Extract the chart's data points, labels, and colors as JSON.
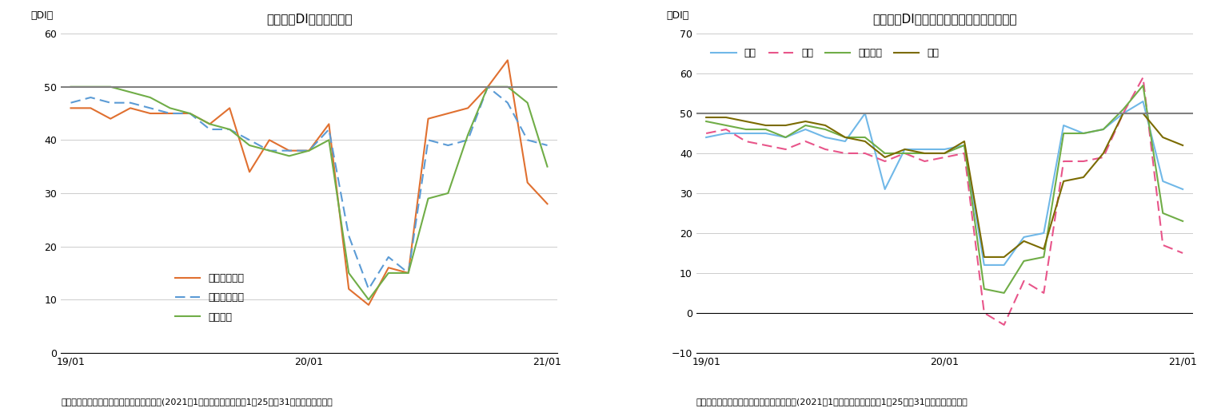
{
  "chart1": {
    "title": "現状判断DIの内訳の推移",
    "ylabel": "（DI）",
    "ylim": [
      0,
      60
    ],
    "yticks": [
      0,
      10,
      20,
      30,
      40,
      50,
      60
    ],
    "hline": 50,
    "footnote": "（出所）内閣府「景気ウォッチャー調査」(2021年1月調査、調査期間：1月25日～31日、季節調整値）",
    "x_labels": [
      "19/01",
      "20/01",
      "21/01"
    ],
    "series": [
      {
        "name": "家計動向関連",
        "color": "#E07030",
        "dashes": [],
        "values": [
          46,
          46,
          44,
          46,
          45,
          45,
          45,
          43,
          46,
          34,
          40,
          38,
          38,
          43,
          12,
          9,
          16,
          15,
          44,
          45,
          46,
          50,
          55,
          32,
          28
        ]
      },
      {
        "name": "企業動向関連",
        "color": "#5B9BD5",
        "dashes": [
          6,
          3
        ],
        "values": [
          47,
          48,
          47,
          47,
          46,
          45,
          45,
          42,
          42,
          40,
          38,
          38,
          38,
          42,
          22,
          12,
          18,
          15,
          40,
          39,
          40,
          50,
          47,
          40,
          39
        ]
      },
      {
        "name": "雇用関連",
        "color": "#70AD47",
        "dashes": [],
        "values": [
          50,
          50,
          50,
          49,
          48,
          46,
          45,
          43,
          42,
          39,
          38,
          37,
          38,
          40,
          15,
          10,
          15,
          15,
          29,
          30,
          41,
          50,
          50,
          47,
          35
        ]
      }
    ]
  },
  "chart2": {
    "title": "現状判断DI（家計動向関連）の内訳の推移",
    "ylabel": "（DI）",
    "ylim": [
      -10,
      70
    ],
    "yticks": [
      -10,
      0,
      10,
      20,
      30,
      40,
      50,
      60,
      70
    ],
    "hline": 50,
    "footnote": "（出所）内閣府「景気ウォッチャー調査」(2021年1月調査、調査期間：1月25日～31日、季節調整値）",
    "x_labels": [
      "19/01",
      "20/01",
      "21/01"
    ],
    "series": [
      {
        "name": "小売",
        "color": "#70B8E8",
        "dashes": [],
        "values": [
          44,
          45,
          45,
          45,
          44,
          46,
          44,
          43,
          50,
          31,
          41,
          41,
          41,
          42,
          12,
          12,
          19,
          20,
          47,
          45,
          46,
          50,
          53,
          33,
          31
        ]
      },
      {
        "name": "飲食",
        "color": "#E8558A",
        "dashes": [
          6,
          3
        ],
        "values": [
          45,
          46,
          43,
          42,
          41,
          43,
          41,
          40,
          40,
          38,
          40,
          38,
          39,
          40,
          0,
          -3,
          8,
          5,
          38,
          38,
          39,
          50,
          59,
          17,
          15
        ]
      },
      {
        "name": "サービス",
        "color": "#70AD47",
        "dashes": [],
        "values": [
          48,
          47,
          46,
          46,
          44,
          47,
          46,
          44,
          44,
          40,
          40,
          40,
          40,
          42,
          6,
          5,
          13,
          14,
          45,
          45,
          46,
          51,
          57,
          25,
          23
        ]
      },
      {
        "name": "住宅",
        "color": "#7B6B00",
        "dashes": [],
        "values": [
          49,
          49,
          48,
          47,
          47,
          48,
          47,
          44,
          43,
          39,
          41,
          40,
          40,
          43,
          14,
          14,
          18,
          16,
          33,
          34,
          40,
          50,
          50,
          44,
          42
        ]
      }
    ]
  }
}
